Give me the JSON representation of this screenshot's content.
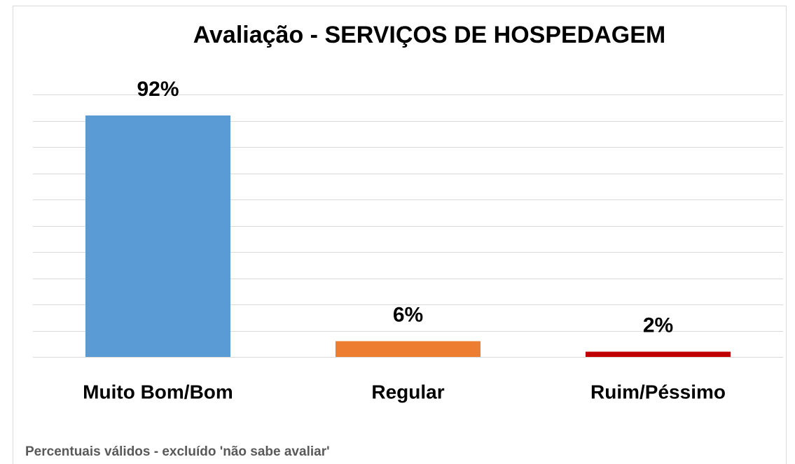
{
  "chart_data": {
    "type": "bar",
    "title": "Avaliação - SERVIÇOS DE HOSPEDAGEM",
    "categories": [
      "Muito Bom/Bom",
      "Regular",
      "Ruim/Péssimo"
    ],
    "values": [
      92,
      6,
      2
    ],
    "value_labels": [
      "92%",
      "6%",
      "2%"
    ],
    "colors": [
      "#5b9bd5",
      "#ed7d31",
      "#c00000"
    ],
    "ylim": [
      0,
      100
    ],
    "yticks": [
      0,
      10,
      20,
      30,
      40,
      50,
      60,
      70,
      80,
      90,
      100
    ],
    "grid": true,
    "note": "Percentuais válidos - excluído 'não sabe avaliar'"
  }
}
